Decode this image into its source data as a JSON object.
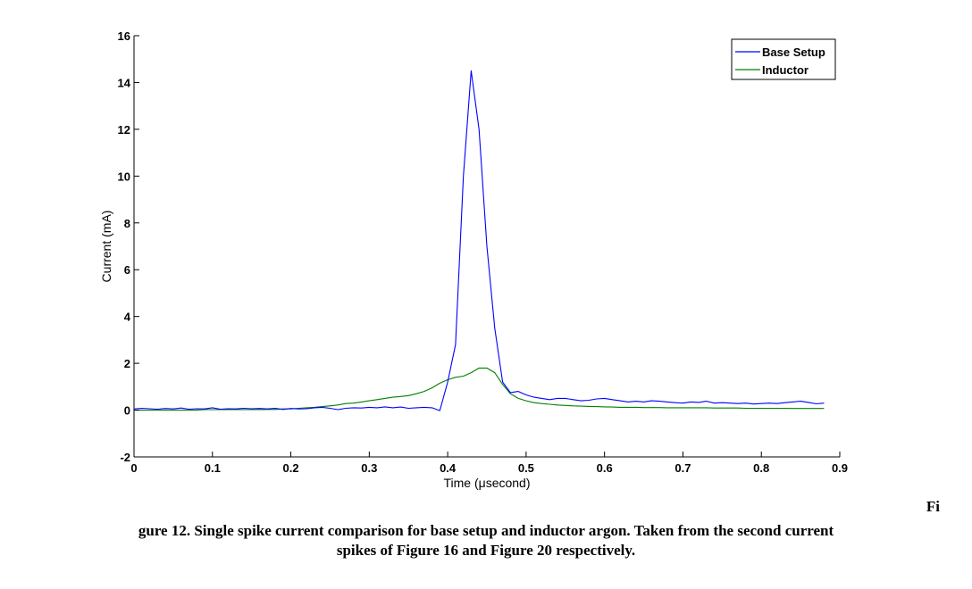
{
  "chart_data": {
    "type": "line",
    "title": "",
    "xlabel": "Time (μsecond)",
    "ylabel": "Current (mA)",
    "xlim": [
      0,
      0.9
    ],
    "ylim": [
      -2,
      16
    ],
    "xticks": [
      "0",
      "0.1",
      "0.2",
      "0.3",
      "0.4",
      "0.5",
      "0.6",
      "0.7",
      "0.8",
      "0.9"
    ],
    "yticks": [
      "-2",
      "0",
      "2",
      "4",
      "6",
      "8",
      "10",
      "12",
      "14",
      "16"
    ],
    "grid": false,
    "legend_position": "top-right",
    "series": [
      {
        "name": "Base Setup",
        "color": "#0000ff",
        "x": [
          0,
          0.01,
          0.02,
          0.03,
          0.04,
          0.05,
          0.06,
          0.07,
          0.08,
          0.09,
          0.1,
          0.11,
          0.12,
          0.13,
          0.14,
          0.15,
          0.16,
          0.17,
          0.18,
          0.19,
          0.2,
          0.21,
          0.22,
          0.23,
          0.24,
          0.25,
          0.26,
          0.27,
          0.28,
          0.29,
          0.3,
          0.31,
          0.32,
          0.33,
          0.34,
          0.35,
          0.36,
          0.37,
          0.38,
          0.39,
          0.4,
          0.41,
          0.42,
          0.43,
          0.44,
          0.45,
          0.46,
          0.47,
          0.48,
          0.49,
          0.5,
          0.51,
          0.52,
          0.53,
          0.54,
          0.55,
          0.56,
          0.57,
          0.58,
          0.59,
          0.6,
          0.61,
          0.62,
          0.63,
          0.64,
          0.65,
          0.66,
          0.67,
          0.68,
          0.69,
          0.7,
          0.71,
          0.72,
          0.73,
          0.74,
          0.75,
          0.76,
          0.77,
          0.78,
          0.79,
          0.8,
          0.81,
          0.82,
          0.83,
          0.84,
          0.85,
          0.86,
          0.87,
          0.88
        ],
        "values": [
          0.05,
          0.08,
          0.06,
          0.04,
          0.07,
          0.05,
          0.09,
          0.04,
          0.06,
          0.05,
          0.1,
          0.04,
          0.06,
          0.05,
          0.08,
          0.06,
          0.07,
          0.05,
          0.08,
          0.03,
          0.07,
          0.05,
          0.06,
          0.1,
          0.12,
          0.08,
          0.02,
          0.08,
          0.1,
          0.09,
          0.12,
          0.1,
          0.14,
          0.1,
          0.13,
          0.08,
          0.1,
          0.12,
          0.1,
          -0.02,
          1.2,
          2.8,
          10.0,
          14.5,
          12.0,
          7.0,
          3.5,
          1.2,
          0.75,
          0.8,
          0.65,
          0.55,
          0.5,
          0.45,
          0.5,
          0.5,
          0.45,
          0.4,
          0.42,
          0.48,
          0.5,
          0.45,
          0.4,
          0.35,
          0.38,
          0.35,
          0.4,
          0.38,
          0.35,
          0.32,
          0.3,
          0.35,
          0.33,
          0.38,
          0.3,
          0.32,
          0.3,
          0.28,
          0.3,
          0.26,
          0.28,
          0.3,
          0.28,
          0.32,
          0.35,
          0.38,
          0.33,
          0.27,
          0.3
        ]
      },
      {
        "name": "Inductor",
        "color": "#007f00",
        "x": [
          0,
          0.01,
          0.02,
          0.03,
          0.04,
          0.05,
          0.06,
          0.07,
          0.08,
          0.09,
          0.1,
          0.11,
          0.12,
          0.13,
          0.14,
          0.15,
          0.16,
          0.17,
          0.18,
          0.19,
          0.2,
          0.21,
          0.22,
          0.23,
          0.24,
          0.25,
          0.26,
          0.27,
          0.28,
          0.29,
          0.3,
          0.31,
          0.32,
          0.33,
          0.34,
          0.35,
          0.36,
          0.37,
          0.38,
          0.39,
          0.4,
          0.41,
          0.42,
          0.43,
          0.44,
          0.45,
          0.46,
          0.47,
          0.48,
          0.49,
          0.5,
          0.51,
          0.52,
          0.53,
          0.54,
          0.55,
          0.56,
          0.57,
          0.58,
          0.59,
          0.6,
          0.61,
          0.62,
          0.63,
          0.64,
          0.65,
          0.66,
          0.67,
          0.68,
          0.69,
          0.7,
          0.71,
          0.72,
          0.73,
          0.74,
          0.75,
          0.76,
          0.77,
          0.78,
          0.79,
          0.8,
          0.81,
          0.82,
          0.83,
          0.84,
          0.85,
          0.86,
          0.87,
          0.88
        ],
        "values": [
          0.0,
          0.0,
          0.0,
          0.0,
          0.0,
          0.0,
          0.0,
          0.0,
          0.0,
          0.02,
          0.02,
          0.02,
          0.02,
          0.02,
          0.02,
          0.02,
          0.02,
          0.03,
          0.03,
          0.05,
          0.05,
          0.08,
          0.1,
          0.12,
          0.15,
          0.18,
          0.22,
          0.28,
          0.3,
          0.35,
          0.4,
          0.45,
          0.5,
          0.55,
          0.58,
          0.62,
          0.7,
          0.8,
          0.95,
          1.15,
          1.3,
          1.4,
          1.45,
          1.6,
          1.8,
          1.8,
          1.6,
          1.1,
          0.7,
          0.5,
          0.4,
          0.32,
          0.28,
          0.25,
          0.22,
          0.2,
          0.18,
          0.17,
          0.16,
          0.15,
          0.14,
          0.13,
          0.12,
          0.12,
          0.12,
          0.11,
          0.11,
          0.11,
          0.1,
          0.1,
          0.1,
          0.1,
          0.1,
          0.1,
          0.09,
          0.09,
          0.09,
          0.09,
          0.08,
          0.08,
          0.08,
          0.08,
          0.08,
          0.08,
          0.07,
          0.07,
          0.07,
          0.07,
          0.07
        ]
      }
    ]
  },
  "caption": {
    "line1_end": "Fi",
    "line2": "gure 12. Single spike current comparison for base setup and inductor argon. Taken from the second current",
    "line3": "spikes of Figure 16 and Figure 20 respectively."
  }
}
